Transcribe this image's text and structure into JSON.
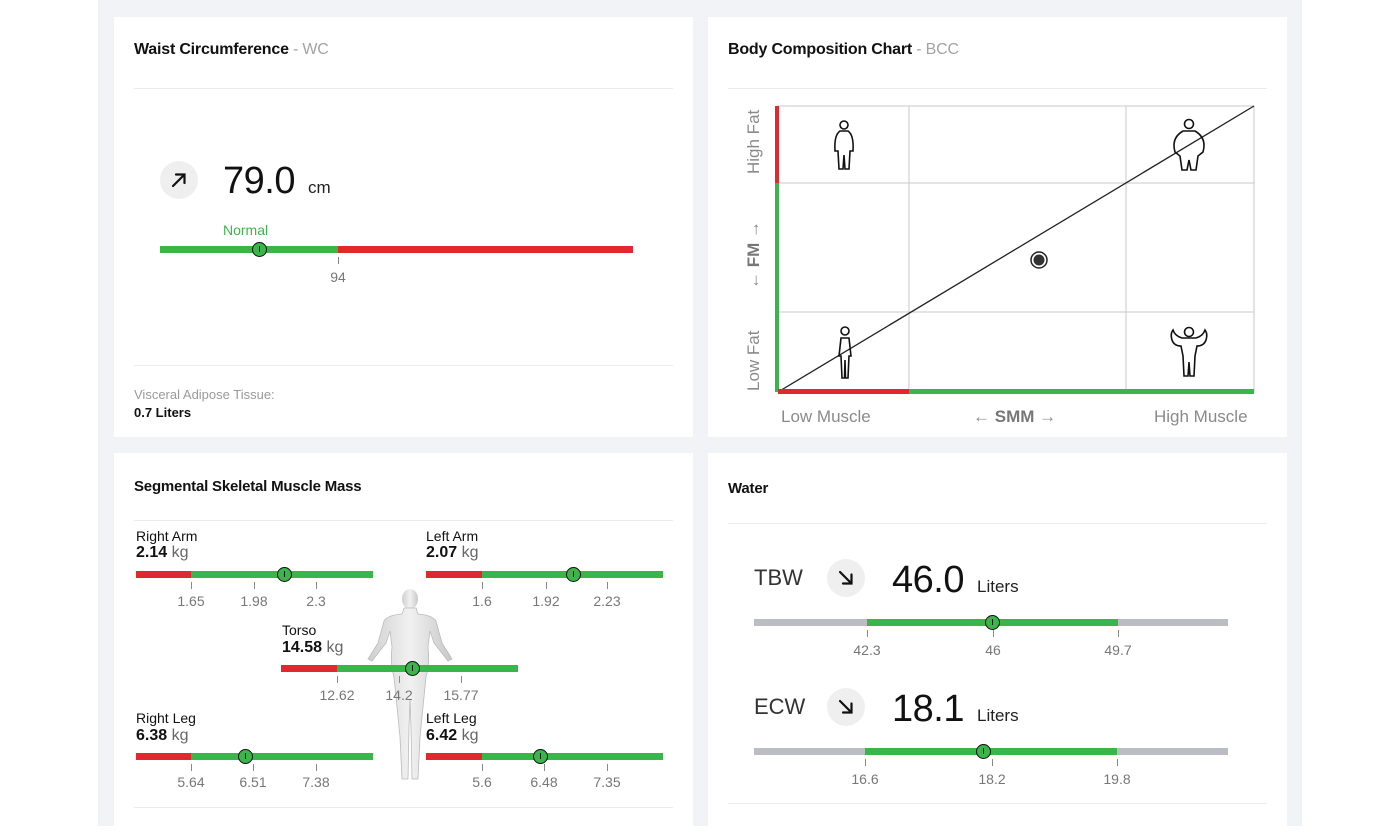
{
  "waist": {
    "title": "Waist Circumference",
    "abbr": "- WC",
    "trend_icon": "arrow-up-right-icon",
    "value": "79.0",
    "unit": "cm",
    "status": "Normal",
    "threshold_label": "94",
    "marker_fraction": 0.21,
    "vat_label": "Visceral Adipose Tissue:",
    "vat_value": "0.7 Liters"
  },
  "bcc": {
    "title": "Body Composition Chart",
    "abbr": "- BCC",
    "y_high": "High Fat",
    "y_mid_left": "←",
    "y_mid": "FM",
    "y_mid_right": "→",
    "y_low": "Low Fat",
    "x_low": "Low Muscle",
    "x_mid_left": "←",
    "x_mid": "SMM",
    "x_mid_right": "→",
    "x_high": "High Muscle",
    "icons": [
      "person-slim-fat-icon",
      "person-obese-icon",
      "person-slim-icon",
      "person-muscular-icon"
    ],
    "point_icon": "current-position-dot-icon"
  },
  "ssm": {
    "title": "Segmental Skeletal Muscle Mass",
    "body_icon": "human-body-figure-icon",
    "right_arm": {
      "name": "Right Arm",
      "value": "2.14",
      "unit": "kg",
      "ticks": [
        "1.65",
        "1.98",
        "2.3"
      ]
    },
    "left_arm": {
      "name": "Left Arm",
      "value": "2.07",
      "unit": "kg",
      "ticks": [
        "1.6",
        "1.92",
        "2.23"
      ]
    },
    "torso": {
      "name": "Torso",
      "value": "14.58",
      "unit": "kg",
      "ticks": [
        "12.62",
        "14.2",
        "15.77"
      ]
    },
    "right_leg": {
      "name": "Right Leg",
      "value": "6.38",
      "unit": "kg",
      "ticks": [
        "5.64",
        "6.51",
        "7.38"
      ]
    },
    "left_leg": {
      "name": "Left Leg",
      "value": "6.42",
      "unit": "kg",
      "ticks": [
        "5.6",
        "6.48",
        "7.35"
      ]
    }
  },
  "water": {
    "title": "Water",
    "tbw": {
      "label": "TBW",
      "trend_icon": "arrow-down-right-icon",
      "value": "46.0",
      "unit": "Liters",
      "ticks": [
        "42.3",
        "46",
        "49.7"
      ]
    },
    "ecw": {
      "label": "ECW",
      "trend_icon": "arrow-down-right-icon",
      "value": "18.1",
      "unit": "Liters",
      "ticks": [
        "16.6",
        "18.2",
        "19.8"
      ]
    }
  },
  "colors": {
    "red": "#e0282e",
    "green": "#3ab54a",
    "gray": "#bcbcc4",
    "background": "#f2f3f6"
  }
}
